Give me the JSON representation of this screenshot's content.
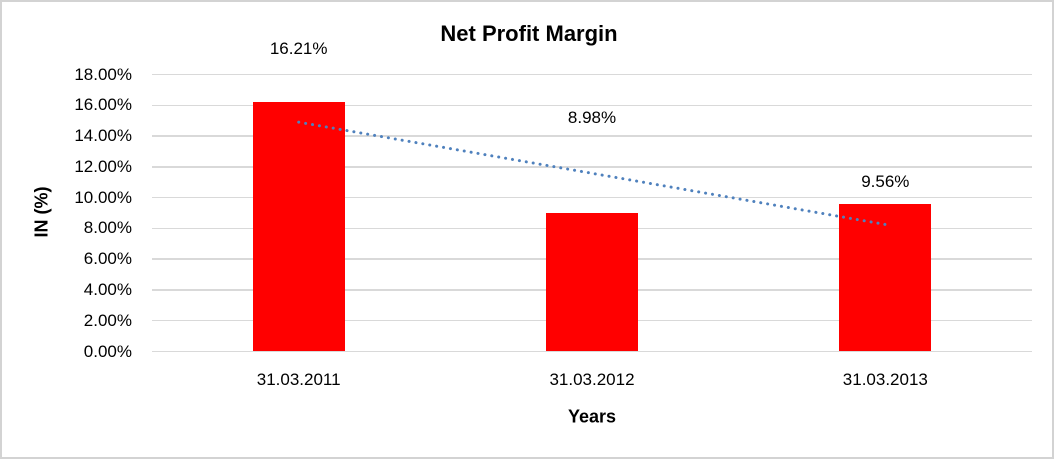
{
  "chart_data": {
    "type": "bar",
    "title": "Net Profit Margin",
    "xlabel": "Years",
    "ylabel": "IN (%)",
    "categories": [
      "31.03.2011",
      "31.03.2012",
      "31.03.2013"
    ],
    "values": [
      16.21,
      8.98,
      9.56
    ],
    "data_labels": [
      "16.21%",
      "8.98%",
      "9.56%"
    ],
    "ylim": [
      0,
      18
    ],
    "y_tick_step": 2,
    "y_tick_labels": [
      "0.00%",
      "2.00%",
      "4.00%",
      "6.00%",
      "8.00%",
      "10.00%",
      "12.00%",
      "14.00%",
      "16.00%",
      "18.00%"
    ],
    "grid": true,
    "legend_position": "none",
    "bar_color": "#FF0000",
    "gridline_color": "#D9D9D9",
    "chart_border_color": "#D3D3D3",
    "background_color": "#FFFFFF",
    "text_color": "#000000",
    "trendline": {
      "type": "linear",
      "style": "dotted",
      "color": "#4F81BD",
      "start_value_pct": 14.91,
      "end_value_pct": 8.26
    }
  }
}
